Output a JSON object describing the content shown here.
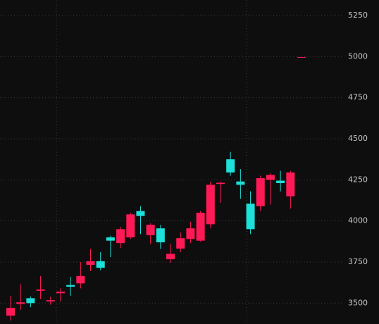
{
  "chart_data": {
    "type": "candlestick",
    "categories": [
      null,
      null,
      null,
      null,
      null,
      null,
      null,
      null,
      null,
      null,
      null,
      null,
      null,
      null,
      null,
      null,
      null,
      null,
      null,
      null,
      null,
      null,
      null,
      null,
      null,
      null,
      null,
      null,
      null
    ],
    "open": [
      3424,
      3495,
      3530,
      3575,
      3510,
      3560,
      3610,
      3620,
      3733,
      3755,
      3900,
      3865,
      3900,
      4060,
      3913,
      3955,
      3767,
      3832,
      3890,
      3880,
      3980,
      4225,
      4375,
      4240,
      4105,
      4090,
      4250,
      4245,
      4150
    ],
    "high": [
      3544,
      3615,
      3540,
      3665,
      3540,
      3590,
      3660,
      3750,
      3830,
      3810,
      3910,
      3965,
      4050,
      4090,
      3985,
      3975,
      3860,
      3930,
      3995,
      4060,
      4240,
      4240,
      4420,
      4315,
      4180,
      4275,
      4290,
      4305,
      4305
    ],
    "low": [
      3394,
      3458,
      3475,
      3525,
      3490,
      3510,
      3545,
      3590,
      3695,
      3700,
      3780,
      3835,
      3890,
      3920,
      3860,
      3830,
      3745,
      3810,
      3865,
      3875,
      3955,
      4110,
      4275,
      4135,
      3920,
      4060,
      4100,
      4180,
      4075
    ],
    "close": [
      3471,
      3505,
      3500,
      3583,
      3518,
      3570,
      3600,
      3665,
      3755,
      3715,
      3880,
      3950,
      4040,
      4030,
      3977,
      3870,
      3800,
      3895,
      3955,
      4050,
      4220,
      4232,
      4295,
      4220,
      3950,
      4260,
      4280,
      4230,
      4295
    ],
    "up_color": "#ff1a57",
    "down_color": "#1de0d8",
    "price_line": 4995,
    "ylim": [
      3373,
      5344
    ],
    "yticks": [
      3500,
      3750,
      4000,
      4250,
      4500,
      4750,
      5000,
      5250
    ],
    "grid": true
  }
}
